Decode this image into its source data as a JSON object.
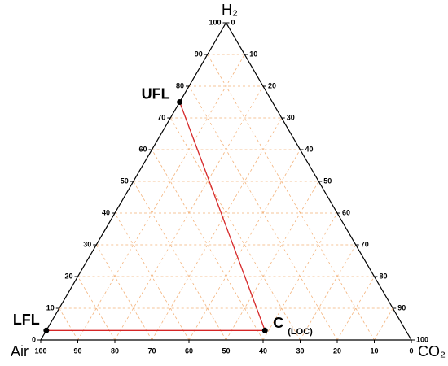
{
  "chart_data": {
    "type": "ternary",
    "axes": {
      "top": "H₂",
      "left": "Air",
      "right": "CO₂"
    },
    "h2ticks": [
      0,
      10,
      20,
      30,
      40,
      50,
      60,
      70,
      80,
      90,
      100
    ],
    "airticks": [
      0,
      10,
      20,
      30,
      40,
      50,
      60,
      70,
      80,
      90,
      100
    ],
    "co2ticks": [
      0,
      10,
      20,
      30,
      40,
      50,
      60,
      70,
      80,
      90,
      100
    ],
    "grid": true,
    "points": [
      {
        "name": "UFL",
        "H2": 75,
        "Air": 25,
        "CO2": 0
      },
      {
        "name": "LFL",
        "H2": 3,
        "Air": 97,
        "CO2": 0
      },
      {
        "name": "C",
        "note": "(LOC)",
        "H2": 3,
        "Air": 38,
        "CO2": 59
      }
    ],
    "line_color": "#d62728"
  }
}
